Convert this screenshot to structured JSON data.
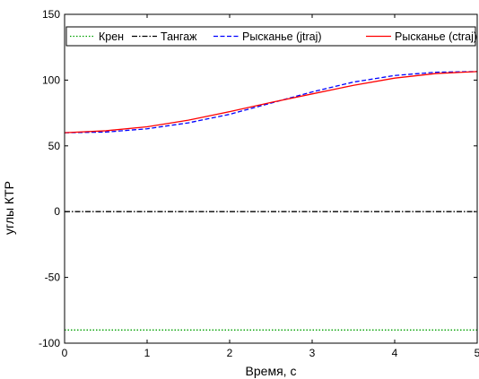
{
  "chart_data": {
    "type": "line",
    "xlabel": "Время, с",
    "ylabel": "углы КТР",
    "xlim": [
      0,
      5
    ],
    "ylim": [
      -100,
      150
    ],
    "xticks": [
      0,
      1,
      2,
      3,
      4,
      5
    ],
    "yticks": [
      -100,
      -50,
      0,
      50,
      100,
      150
    ],
    "xtick_labels": [
      "0",
      "1",
      "2",
      "3",
      "4",
      "5"
    ],
    "ytick_labels": [
      "-100",
      "-50",
      "0",
      "50",
      "100",
      "150"
    ],
    "grid": false,
    "legend_position": "top",
    "series": [
      {
        "name": "Крен",
        "color": "#00a000",
        "dash": "dotted",
        "x": [
          0,
          1,
          2,
          3,
          4,
          5
        ],
        "y": [
          -90,
          -90,
          -90,
          -90,
          -90,
          -90
        ]
      },
      {
        "name": "Тангаж",
        "color": "#000000",
        "dash": "dashdot",
        "x": [
          0,
          1,
          2,
          3,
          4,
          5
        ],
        "y": [
          0,
          0,
          0,
          0,
          0,
          0
        ]
      },
      {
        "name": "Рысканье (jtraj)",
        "color": "#0000ff",
        "dash": "dashed",
        "x": [
          0,
          0.5,
          1,
          1.5,
          2,
          2.5,
          3,
          3.5,
          4,
          4.5,
          5
        ],
        "y": [
          60,
          60.5,
          63,
          67.5,
          74,
          82.5,
          91,
          98.5,
          103.5,
          106,
          106.5
        ]
      },
      {
        "name": "Рысканье (ctraj)",
        "color": "#ff0000",
        "dash": "solid",
        "x": [
          0,
          0.5,
          1,
          1.5,
          2,
          2.5,
          3,
          3.5,
          4,
          4.5,
          5
        ],
        "y": [
          60,
          61.5,
          64.5,
          69.5,
          76,
          83,
          89.5,
          96,
          101.5,
          105,
          106.5
        ]
      }
    ]
  }
}
